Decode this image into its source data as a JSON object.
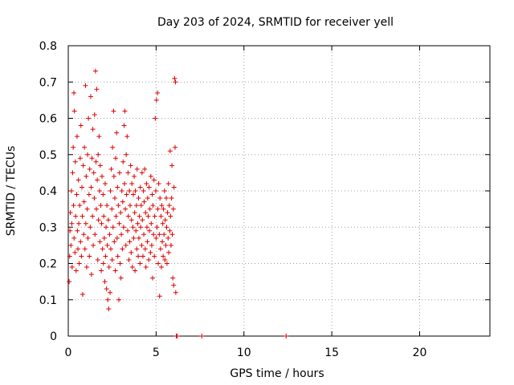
{
  "chart_data": {
    "type": "scatter",
    "title": "Day 203 of 2024, SRMTID for receiver yell",
    "xlabel": "GPS time / hours",
    "ylabel": "SRMTID / TECUs",
    "xlim": [
      0,
      24
    ],
    "ylim": [
      0,
      0.8
    ],
    "x_ticks": [
      0,
      5,
      10,
      15,
      20
    ],
    "x_tick_labels": [
      "0",
      "5",
      "10",
      "15",
      "20"
    ],
    "y_ticks": [
      0,
      0.1,
      0.2,
      0.3,
      0.4,
      0.5,
      0.6,
      0.7,
      0.8
    ],
    "y_tick_labels": [
      "0",
      "0.1",
      "0.2",
      "0.3",
      "0.4",
      "0.5",
      "0.6",
      "0.7",
      "0.8"
    ],
    "grid": true,
    "marker": "+",
    "color": "#dd0000",
    "series": [
      {
        "name": "SRMTID",
        "points": [
          [
            0.05,
            0.15
          ],
          [
            0.08,
            0.22
          ],
          [
            0.1,
            0.29
          ],
          [
            0.12,
            0.34
          ],
          [
            0.15,
            0.25
          ],
          [
            0.18,
            0.4
          ],
          [
            0.2,
            0.31
          ],
          [
            0.22,
            0.19
          ],
          [
            0.25,
            0.45
          ],
          [
            0.28,
            0.52
          ],
          [
            0.3,
            0.36
          ],
          [
            0.32,
            0.67
          ],
          [
            0.33,
            0.27
          ],
          [
            0.35,
            0.62
          ],
          [
            0.38,
            0.23
          ],
          [
            0.4,
            0.48
          ],
          [
            0.42,
            0.33
          ],
          [
            0.45,
            0.18
          ],
          [
            0.48,
            0.39
          ],
          [
            0.5,
            0.55
          ],
          [
            0.52,
            0.29
          ],
          [
            0.55,
            0.24
          ],
          [
            0.58,
            0.43
          ],
          [
            0.6,
            0.31
          ],
          [
            0.62,
            0.2
          ],
          [
            0.65,
            0.36
          ],
          [
            0.68,
            0.49
          ],
          [
            0.7,
            0.26
          ],
          [
            0.72,
            0.58
          ],
          [
            0.75,
            0.22
          ],
          [
            0.78,
            0.41
          ],
          [
            0.8,
            0.33
          ],
          [
            0.82,
            0.115
          ],
          [
            0.85,
            0.47
          ],
          [
            0.88,
            0.28
          ],
          [
            0.9,
            0.37
          ],
          [
            0.92,
            0.52
          ],
          [
            0.95,
            0.24
          ],
          [
            0.98,
            0.69
          ],
          [
            1.0,
            0.31
          ],
          [
            1.02,
            0.44
          ],
          [
            1.05,
            0.19
          ],
          [
            1.08,
            0.35
          ],
          [
            1.1,
            0.5
          ],
          [
            1.12,
            0.27
          ],
          [
            1.15,
            0.6
          ],
          [
            1.18,
            0.39
          ],
          [
            1.2,
            0.22
          ],
          [
            1.22,
            0.46
          ],
          [
            1.25,
            0.3
          ],
          [
            1.28,
            0.66
          ],
          [
            1.3,
            0.41
          ],
          [
            1.32,
            0.17
          ],
          [
            1.35,
            0.49
          ],
          [
            1.38,
            0.33
          ],
          [
            1.4,
            0.57
          ],
          [
            1.42,
            0.25
          ],
          [
            1.45,
            0.45
          ],
          [
            1.48,
            0.38
          ],
          [
            1.5,
            0.61
          ],
          [
            1.52,
            0.28
          ],
          [
            1.55,
            0.73
          ],
          [
            1.58,
            0.48
          ],
          [
            1.6,
            0.35
          ],
          [
            1.62,
            0.68
          ],
          [
            1.65,
            0.43
          ],
          [
            1.68,
            0.21
          ],
          [
            1.7,
            0.5
          ],
          [
            1.72,
            0.32
          ],
          [
            1.75,
            0.55
          ],
          [
            1.78,
            0.4
          ],
          [
            1.8,
            0.26
          ],
          [
            1.82,
            0.47
          ],
          [
            1.85,
            0.36
          ],
          [
            1.88,
            0.18
          ],
          [
            1.9,
            0.31
          ],
          [
            1.92,
            0.44
          ],
          [
            1.95,
            0.24
          ],
          [
            1.98,
            0.39
          ],
          [
            2.0,
            0.2
          ],
          [
            2.02,
            0.33
          ],
          [
            2.05,
            0.27
          ],
          [
            2.08,
            0.15
          ],
          [
            2.1,
            0.42
          ],
          [
            2.12,
            0.22
          ],
          [
            2.15,
            0.3
          ],
          [
            2.18,
            0.13
          ],
          [
            2.2,
            0.36
          ],
          [
            2.22,
            0.25
          ],
          [
            2.25,
            0.1
          ],
          [
            2.28,
            0.32
          ],
          [
            2.3,
            0.075
          ],
          [
            2.32,
            0.19
          ],
          [
            2.35,
            0.28
          ],
          [
            2.38,
            0.12
          ],
          [
            2.4,
            0.4
          ],
          [
            2.42,
            0.24
          ],
          [
            2.45,
            0.46
          ],
          [
            2.48,
            0.35
          ],
          [
            2.5,
            0.21
          ],
          [
            2.52,
            0.52
          ],
          [
            2.55,
            0.3
          ],
          [
            2.58,
            0.62
          ],
          [
            2.6,
            0.44
          ],
          [
            2.62,
            0.26
          ],
          [
            2.65,
            0.38
          ],
          [
            2.68,
            0.18
          ],
          [
            2.7,
            0.49
          ],
          [
            2.72,
            0.33
          ],
          [
            2.75,
            0.56
          ],
          [
            2.78,
            0.27
          ],
          [
            2.8,
            0.41
          ],
          [
            2.82,
            0.22
          ],
          [
            2.85,
            0.36
          ],
          [
            2.88,
            0.1
          ],
          [
            2.9,
            0.31
          ],
          [
            2.92,
            0.45
          ],
          [
            2.95,
            0.2
          ],
          [
            2.98,
            0.34
          ],
          [
            3.0,
            0.16
          ],
          [
            3.02,
            0.28
          ],
          [
            3.05,
            0.4
          ],
          [
            3.08,
            0.24
          ],
          [
            3.1,
            0.37
          ],
          [
            3.12,
            0.48
          ],
          [
            3.15,
            0.3
          ],
          [
            3.18,
            0.58
          ],
          [
            3.2,
            0.42
          ],
          [
            3.22,
            0.62
          ],
          [
            3.25,
            0.35
          ],
          [
            3.28,
            0.25
          ],
          [
            3.3,
            0.5
          ],
          [
            3.32,
            0.39
          ],
          [
            3.35,
            0.55
          ],
          [
            3.38,
            0.29
          ],
          [
            3.4,
            0.45
          ],
          [
            3.42,
            0.33
          ],
          [
            3.45,
            0.21
          ],
          [
            3.48,
            0.4
          ],
          [
            3.5,
            0.26
          ],
          [
            3.52,
            0.36
          ],
          [
            3.55,
            0.47
          ],
          [
            3.58,
            0.23
          ],
          [
            3.6,
            0.32
          ],
          [
            3.62,
            0.42
          ],
          [
            3.65,
            0.19
          ],
          [
            3.68,
            0.3
          ],
          [
            3.7,
            0.39
          ],
          [
            3.72,
            0.27
          ],
          [
            3.75,
            0.44
          ],
          [
            3.78,
            0.34
          ],
          [
            3.8,
            0.18
          ],
          [
            3.82,
            0.4
          ],
          [
            3.85,
            0.29
          ],
          [
            3.88,
            0.36
          ],
          [
            3.9,
            0.24
          ],
          [
            3.92,
            0.46
          ],
          [
            3.95,
            0.31
          ],
          [
            3.98,
            0.22
          ],
          [
            4.0,
            0.38
          ],
          [
            4.02,
            0.27
          ],
          [
            4.05,
            0.33
          ],
          [
            4.08,
            0.2
          ],
          [
            4.1,
            0.41
          ],
          [
            4.12,
            0.3
          ],
          [
            4.15,
            0.36
          ],
          [
            4.18,
            0.25
          ],
          [
            4.2,
            0.45
          ],
          [
            4.22,
            0.32
          ],
          [
            4.25,
            0.22
          ],
          [
            4.28,
            0.4
          ],
          [
            4.3,
            0.28
          ],
          [
            4.32,
            0.37
          ],
          [
            4.35,
            0.46
          ],
          [
            4.38,
            0.24
          ],
          [
            4.4,
            0.34
          ],
          [
            4.42,
            0.19
          ],
          [
            4.45,
            0.42
          ],
          [
            4.48,
            0.3
          ],
          [
            4.5,
            0.26
          ],
          [
            4.52,
            0.38
          ],
          [
            4.55,
            0.33
          ],
          [
            4.58,
            0.21
          ],
          [
            4.6,
            0.41
          ],
          [
            4.62,
            0.29
          ],
          [
            4.65,
            0.35
          ],
          [
            4.68,
            0.23
          ],
          [
            4.7,
            0.44
          ],
          [
            4.72,
            0.31
          ],
          [
            4.75,
            0.25
          ],
          [
            4.78,
            0.39
          ],
          [
            4.8,
            0.16
          ],
          [
            4.82,
            0.36
          ],
          [
            4.85,
            0.28
          ],
          [
            4.88,
            0.43
          ],
          [
            4.9,
            0.22
          ],
          [
            4.92,
            0.33
          ],
          [
            4.95,
            0.6
          ],
          [
            4.98,
            0.4
          ],
          [
            5.0,
            0.27
          ],
          [
            5.02,
            0.65
          ],
          [
            5.05,
            0.3
          ],
          [
            5.08,
            0.67
          ],
          [
            5.1,
            0.35
          ],
          [
            5.12,
            0.2
          ],
          [
            5.15,
            0.42
          ],
          [
            5.18,
            0.28
          ],
          [
            5.2,
            0.11
          ],
          [
            5.22,
            0.38
          ],
          [
            5.25,
            0.24
          ],
          [
            5.28,
            0.33
          ],
          [
            5.3,
            0.19
          ],
          [
            5.32,
            0.36
          ],
          [
            5.35,
            0.26
          ],
          [
            5.38,
            0.31
          ],
          [
            5.4,
            0.22
          ],
          [
            5.42,
            0.35
          ],
          [
            5.45,
            0.28
          ],
          [
            5.48,
            0.4
          ],
          [
            5.5,
            0.21
          ],
          [
            5.52,
            0.32
          ],
          [
            5.55,
            0.25
          ],
          [
            5.58,
            0.38
          ],
          [
            5.6,
            0.3
          ],
          [
            5.62,
            0.2
          ],
          [
            5.65,
            0.34
          ],
          [
            5.68,
            0.27
          ],
          [
            5.7,
            0.42
          ],
          [
            5.72,
            0.23
          ],
          [
            5.75,
            0.36
          ],
          [
            5.78,
            0.29
          ],
          [
            5.8,
            0.51
          ],
          [
            5.82,
            0.33
          ],
          [
            5.85,
            0.25
          ],
          [
            5.88,
            0.38
          ],
          [
            5.9,
            0.47
          ],
          [
            5.92,
            0.28
          ],
          [
            5.95,
            0.16
          ],
          [
            5.98,
            0.35
          ],
          [
            6.0,
            0.14
          ],
          [
            6.02,
            0.41
          ],
          [
            6.05,
            0.71
          ],
          [
            6.08,
            0.52
          ],
          [
            6.1,
            0.7
          ],
          [
            6.12,
            0.12
          ],
          [
            6.15,
            0.0
          ],
          [
            6.2,
            0.0
          ],
          [
            7.6,
            0.0
          ],
          [
            12.4,
            0.0
          ]
        ]
      }
    ]
  }
}
